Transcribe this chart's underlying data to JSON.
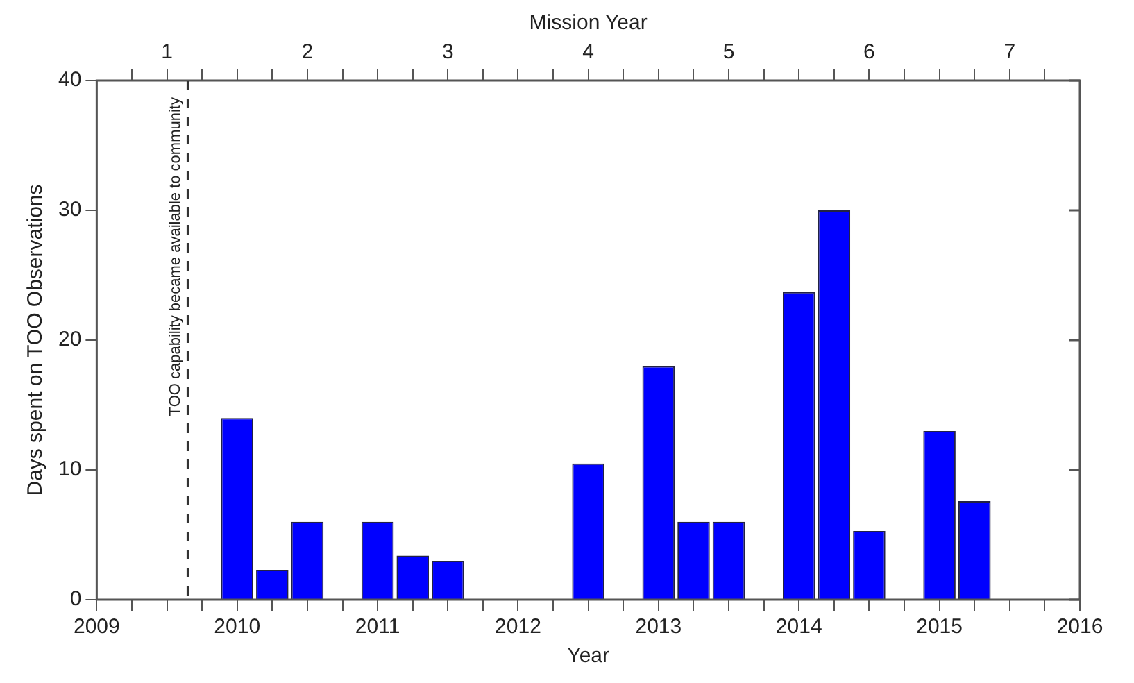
{
  "chart_data": {
    "type": "bar",
    "xlabel": "Year",
    "ylabel": "Days spent on TOO Observations",
    "x2label": "Mission Year",
    "x": [
      2010,
      2010.25,
      2010.5,
      2011,
      2011.25,
      2011.5,
      2012.5,
      2013,
      2013.25,
      2013.5,
      2014,
      2014.25,
      2014.5,
      2015,
      2015.25
    ],
    "series": [
      {
        "color": "#0000ff",
        "values": [
          14,
          2.3,
          6,
          6,
          3.4,
          3,
          10.5,
          18,
          6,
          6,
          23.7,
          30,
          5.3,
          13,
          7.6
        ]
      }
    ],
    "xlim": [
      2009,
      2016
    ],
    "xticks": [
      2009,
      {
        "value": 2009.25,
        "label": null
      },
      {
        "value": 2009.5,
        "label": null
      },
      {
        "value": 2009.75,
        "label": null
      },
      2010,
      {
        "value": 2010.25,
        "label": null
      },
      {
        "value": 2010.5,
        "label": null
      },
      {
        "value": 2010.75,
        "label": null
      },
      2011,
      {
        "value": 2011.25,
        "label": null
      },
      {
        "value": 2011.5,
        "label": null
      },
      {
        "value": 2011.75,
        "label": null
      },
      2012,
      {
        "value": 2012.25,
        "label": null
      },
      {
        "value": 2012.5,
        "label": null
      },
      {
        "value": 2012.75,
        "label": null
      },
      2013,
      {
        "value": 2013.25,
        "label": null
      },
      {
        "value": 2013.5,
        "label": null
      },
      {
        "value": 2013.75,
        "label": null
      },
      2014,
      {
        "value": 2014.25,
        "label": null
      },
      {
        "value": 2014.5,
        "label": null
      },
      {
        "value": 2014.75,
        "label": null
      },
      2015,
      {
        "value": 2015.25,
        "label": null
      },
      {
        "value": 2015.5,
        "label": null
      },
      {
        "value": 2015.75,
        "label": null
      },
      2016
    ],
    "x2lim": [
      0.5,
      7.5
    ],
    "x2ticks": [
      {
        "value": 0.75,
        "label": null
      },
      1,
      {
        "value": 1.25,
        "label": null
      },
      {
        "value": 1.5,
        "label": null
      },
      {
        "value": 1.75,
        "label": null
      },
      2,
      {
        "value": 2.25,
        "label": null
      },
      {
        "value": 2.5,
        "label": null
      },
      {
        "value": 2.75,
        "label": null
      },
      3,
      {
        "value": 3.25,
        "label": null
      },
      {
        "value": 3.5,
        "label": null
      },
      {
        "value": 3.75,
        "label": null
      },
      4,
      {
        "value": 4.25,
        "label": null
      },
      {
        "value": 4.5,
        "label": null
      },
      {
        "value": 4.75,
        "label": null
      },
      5,
      {
        "value": 5.25,
        "label": null
      },
      {
        "value": 5.5,
        "label": null
      },
      {
        "value": 5.75,
        "label": null
      },
      6,
      {
        "value": 6.25,
        "label": null
      },
      {
        "value": 6.5,
        "label": null
      },
      {
        "value": 6.75,
        "label": null
      },
      7,
      {
        "value": 7.25,
        "label": null
      }
    ],
    "ylim": [
      0,
      40
    ],
    "yticks": [
      0,
      10,
      20,
      30,
      40
    ],
    "ref_lines": [
      {
        "axis": "x",
        "value": 2009.65,
        "label": "TOO capability became available to community",
        "color": "#333333",
        "line_style": "dashed"
      }
    ],
    "legend": false
  }
}
